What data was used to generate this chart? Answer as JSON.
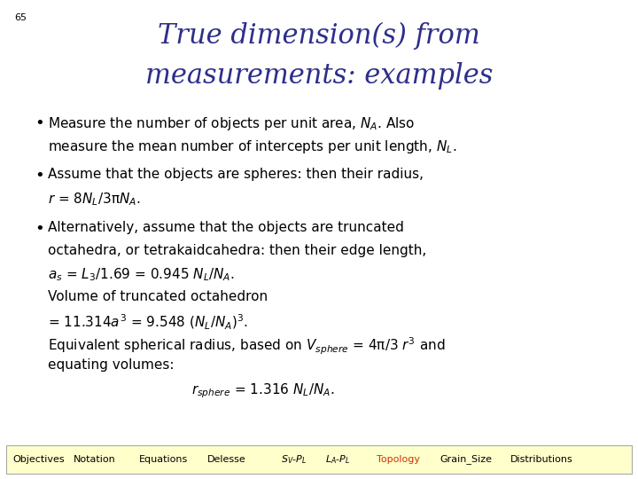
{
  "slide_number": "65",
  "title_line1": "True dimension(s) from",
  "title_line2": "measurements: examples",
  "title_color": "#2E2E8B",
  "background_color": "#FFFFFF",
  "footer_items": [
    "Objectives",
    "Notation",
    "Equations",
    "Delesse",
    "$S_V$-$P_L$",
    "$L_A$-$P_L$",
    "Topology",
    "Grain_Size",
    "Distributions"
  ],
  "footer_highlight_idx": 6,
  "footer_bg": "#FFFFCC",
  "footer_border": "#AAAAAA",
  "footer_text_color": "#000000",
  "footer_highlight_color": "#CC3300",
  "title_fontsize": 22,
  "body_fontsize": 11,
  "footer_fontsize": 8
}
